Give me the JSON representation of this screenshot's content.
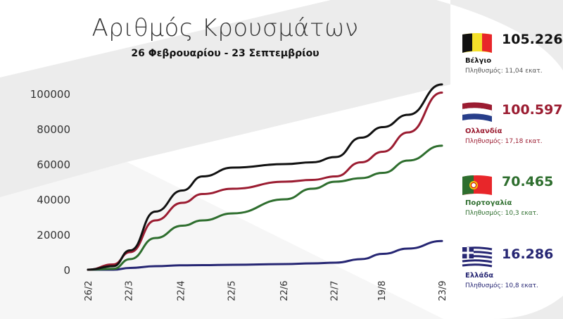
{
  "header": {
    "title": "Αριθμός Κρουσμάτων",
    "subtitle": "26 Φεβρουαρίου - 23 Σεπτεμβρίου"
  },
  "legend": [
    {
      "country": "Βέλγιο",
      "total": "105.226",
      "population": "Πληθυσμός: 11,04 εκατ.",
      "color": "#111111",
      "text_color": "#111111",
      "pop_color": "#555555",
      "flag": "belgium-flag"
    },
    {
      "country": "Ολλανδία",
      "total": "100.597",
      "population": "Πληθυσμός: 17,18 εκατ.",
      "color": "#9b1c31",
      "text_color": "#9b1c31",
      "pop_color": "#9b1c31",
      "flag": "netherlands-flag"
    },
    {
      "country": "Πορτογαλία",
      "total": "70.465",
      "population": "Πληθυσμός: 10,3 εκατ.",
      "color": "#2e6e2e",
      "text_color": "#2e6e2e",
      "pop_color": "#2e6e2e",
      "flag": "portugal-flag"
    },
    {
      "country": "Ελλάδα",
      "total": "16.286",
      "population": "Πληθυσμός: 10,8 εκατ.",
      "color": "#262673",
      "text_color": "#262673",
      "pop_color": "#262673",
      "flag": "greece-flag"
    }
  ],
  "chart_data": {
    "type": "line",
    "title": "Αριθμός Κρουσμάτων",
    "subtitle": "26 Φεβρουαρίου - 23 Σεπτεμβρίου",
    "xlabel": "",
    "ylabel": "",
    "ylim": [
      0,
      105000
    ],
    "yticks": [
      0,
      20000,
      40000,
      60000,
      80000,
      100000
    ],
    "ytick_labels": [
      "0",
      "20000",
      "40000",
      "60000",
      "80000",
      "100000"
    ],
    "xticks": [
      0,
      24,
      55,
      85,
      116,
      146,
      174,
      210
    ],
    "xtick_labels": [
      "26/2",
      "22/3",
      "22/4",
      "22/5",
      "22/6",
      "22/7",
      "19/8",
      "23/9"
    ],
    "x_days": [
      0,
      15,
      25,
      40,
      56,
      68,
      86,
      117,
      133,
      147,
      162,
      175,
      190,
      210
    ],
    "series": [
      {
        "name": "Βέλγιο",
        "color": "#111111",
        "values": [
          0,
          2000,
          11000,
          33000,
          45000,
          53000,
          58000,
          60000,
          61000,
          64000,
          75000,
          81000,
          88000,
          105226
        ]
      },
      {
        "name": "Ολλανδία",
        "color": "#9b1c31",
        "values": [
          0,
          3000,
          10000,
          28000,
          38000,
          43000,
          46000,
          50000,
          51000,
          53000,
          61000,
          67000,
          78000,
          100597
        ]
      },
      {
        "name": "Πορτογαλία",
        "color": "#2e6e2e",
        "values": [
          0,
          500,
          6000,
          18000,
          25000,
          28000,
          32000,
          40000,
          46000,
          50000,
          52000,
          55000,
          62000,
          70465
        ]
      },
      {
        "name": "Ελλάδα",
        "color": "#262673",
        "values": [
          0,
          0,
          1000,
          2000,
          2500,
          2600,
          2800,
          3200,
          3600,
          4000,
          6000,
          9000,
          12000,
          16286
        ]
      }
    ]
  }
}
